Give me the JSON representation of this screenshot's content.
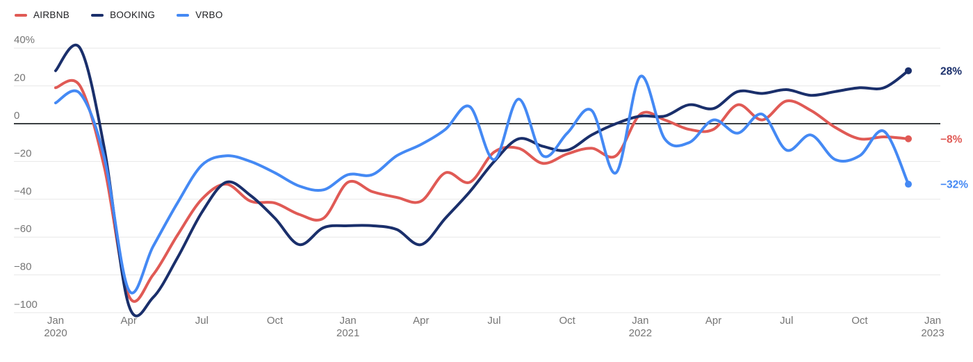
{
  "legend": {
    "items": [
      {
        "label": "AIRBNB",
        "color": "#E05A55"
      },
      {
        "label": "BOOKING",
        "color": "#1A2F6B"
      },
      {
        "label": "VRBO",
        "color": "#4489F4"
      }
    ]
  },
  "chart_data": {
    "type": "line",
    "title": "",
    "xlabel": "",
    "ylabel": "",
    "grid": true,
    "legend_position": "top-left",
    "ylim": [
      -107,
      46
    ],
    "months": [
      "Jan 2020",
      "Feb 2020",
      "Mar 2020",
      "Apr 2020",
      "May 2020",
      "Jun 2020",
      "Jul 2020",
      "Aug 2020",
      "Sep 2020",
      "Oct 2020",
      "Nov 2020",
      "Dec 2020",
      "Jan 2021",
      "Feb 2021",
      "Mar 2021",
      "Apr 2021",
      "May 2021",
      "Jun 2021",
      "Jul 2021",
      "Aug 2021",
      "Sep 2021",
      "Oct 2021",
      "Nov 2021",
      "Dec 2021",
      "Jan 2022",
      "Feb 2022",
      "Mar 2022",
      "Apr 2022",
      "May 2022",
      "Jun 2022",
      "Jul 2022",
      "Aug 2022",
      "Sep 2022",
      "Oct 2022",
      "Nov 2022",
      "Dec 2022"
    ],
    "x_ticks": [
      {
        "label": "Jan",
        "year": "2020",
        "month_index": 0
      },
      {
        "label": "Apr",
        "year": "",
        "month_index": 3
      },
      {
        "label": "Jul",
        "year": "",
        "month_index": 6
      },
      {
        "label": "Oct",
        "year": "",
        "month_index": 9
      },
      {
        "label": "Jan",
        "year": "2021",
        "month_index": 12
      },
      {
        "label": "Apr",
        "year": "",
        "month_index": 15
      },
      {
        "label": "Jul",
        "year": "",
        "month_index": 18
      },
      {
        "label": "Oct",
        "year": "",
        "month_index": 21
      },
      {
        "label": "Jan",
        "year": "2022",
        "month_index": 24
      },
      {
        "label": "Apr",
        "year": "",
        "month_index": 27
      },
      {
        "label": "Jul",
        "year": "",
        "month_index": 30
      },
      {
        "label": "Oct",
        "year": "",
        "month_index": 33
      },
      {
        "label": "Jan",
        "year": "2023",
        "month_index": 36
      }
    ],
    "y_ticks": [
      {
        "label": "40%",
        "value": 40
      },
      {
        "label": "20",
        "value": 20
      },
      {
        "label": "0",
        "value": 0
      },
      {
        "label": "−20",
        "value": -20
      },
      {
        "label": "−40",
        "value": -40
      },
      {
        "label": "−60",
        "value": -60
      },
      {
        "label": "−80",
        "value": -80
      },
      {
        "label": "−100",
        "value": -100
      }
    ],
    "series": [
      {
        "name": "AIRBNB",
        "color": "#E05A55",
        "end_label": "−8%",
        "values": [
          19,
          20,
          -23,
          -91,
          -80,
          -59,
          -40,
          -32,
          -41,
          -42,
          -48,
          -50,
          -31,
          -36,
          -39,
          -41,
          -26,
          -31,
          -15,
          -13,
          -21,
          -16,
          -13,
          -17,
          5,
          2,
          -3,
          -3,
          10,
          2,
          12,
          7,
          -2,
          -8,
          -7,
          -8
        ]
      },
      {
        "name": "BOOKING",
        "color": "#1A2F6B",
        "end_label": "28%",
        "values": [
          28,
          40,
          -13,
          -96,
          -92,
          -71,
          -47,
          -31,
          -38,
          -50,
          -64,
          -55,
          -54,
          -54,
          -56,
          -64,
          -50,
          -36,
          -20,
          -8,
          -12,
          -14,
          -6,
          0,
          4,
          4,
          10,
          8,
          17,
          16,
          18,
          15,
          17,
          19,
          19,
          28
        ]
      },
      {
        "name": "VRBO",
        "color": "#4489F4",
        "end_label": "−32%",
        "values": [
          11,
          16,
          -18,
          -88,
          -65,
          -42,
          -22,
          -17,
          -20,
          -26,
          -33,
          -35,
          -27,
          -27,
          -17,
          -11,
          -3,
          9,
          -19,
          13,
          -17,
          -5,
          7,
          -26,
          25,
          -8,
          -10,
          2,
          -5,
          5,
          -14,
          -6,
          -19,
          -17,
          -4,
          -32
        ]
      }
    ],
    "colors": {
      "grid_line": "#E7E7E7",
      "zero_line": "#3C4043",
      "axis_label": "#757575"
    }
  }
}
